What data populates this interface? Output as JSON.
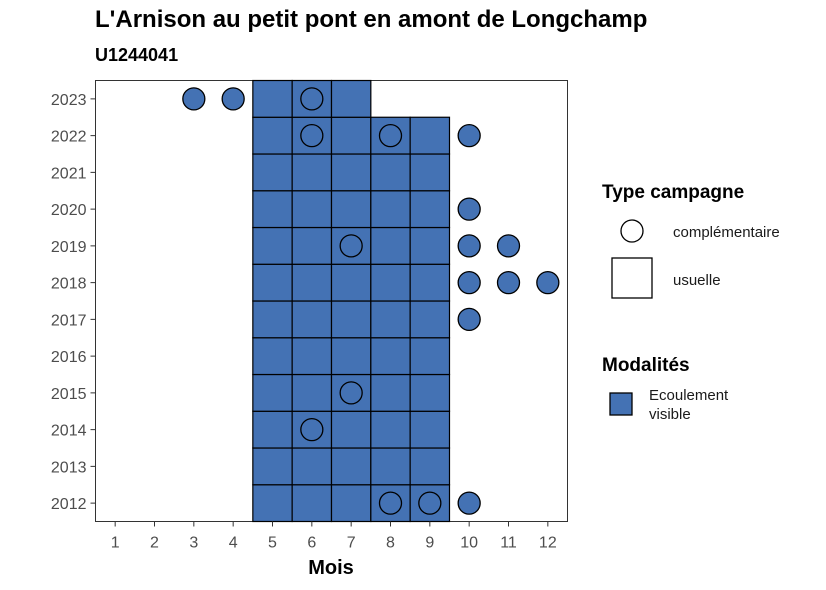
{
  "title": "L'Arnison au petit pont en amont de Longchamp",
  "subtitle": "U1244041",
  "legend": {
    "type_title": "Type campagne",
    "type_items": [
      "complémentaire",
      "usuelle"
    ],
    "modal_title": "Modalités",
    "modal_items": [
      {
        "label": "Ecoulement visible",
        "color": "#4472b4"
      }
    ]
  },
  "chart_data": {
    "type": "heatmap",
    "xlabel": "Mois",
    "ylabel": "",
    "x_ticks": [
      1,
      2,
      3,
      4,
      5,
      6,
      7,
      8,
      9,
      10,
      11,
      12
    ],
    "y_ticks": [
      2012,
      2013,
      2014,
      2015,
      2016,
      2017,
      2018,
      2019,
      2020,
      2021,
      2022,
      2023
    ],
    "xlim": [
      0.5,
      12.5
    ],
    "ylim": [
      2011.5,
      2023.5
    ],
    "grid": false,
    "fill_color": "#4472b4",
    "modalite": "Ecoulement visible",
    "usuelle": [
      {
        "year": 2012,
        "months": [
          5,
          6,
          7,
          8,
          9
        ]
      },
      {
        "year": 2013,
        "months": [
          5,
          6,
          7,
          8,
          9
        ]
      },
      {
        "year": 2014,
        "months": [
          5,
          6,
          7,
          8,
          9
        ]
      },
      {
        "year": 2015,
        "months": [
          5,
          6,
          7,
          8,
          9
        ]
      },
      {
        "year": 2016,
        "months": [
          5,
          6,
          7,
          8,
          9
        ]
      },
      {
        "year": 2017,
        "months": [
          5,
          6,
          7,
          8,
          9
        ]
      },
      {
        "year": 2018,
        "months": [
          5,
          6,
          7,
          8,
          9
        ]
      },
      {
        "year": 2019,
        "months": [
          5,
          6,
          7,
          8,
          9
        ]
      },
      {
        "year": 2020,
        "months": [
          5,
          6,
          7,
          8,
          9
        ]
      },
      {
        "year": 2021,
        "months": [
          5,
          6,
          7,
          8,
          9
        ]
      },
      {
        "year": 2022,
        "months": [
          5,
          6,
          7,
          8,
          9
        ]
      },
      {
        "year": 2023,
        "months": [
          5,
          6,
          7
        ]
      }
    ],
    "complementaire": [
      {
        "year": 2012,
        "months": [
          8,
          9,
          10
        ]
      },
      {
        "year": 2014,
        "months": [
          6
        ]
      },
      {
        "year": 2015,
        "months": [
          7
        ]
      },
      {
        "year": 2017,
        "months": [
          10
        ]
      },
      {
        "year": 2018,
        "months": [
          10,
          11,
          12
        ]
      },
      {
        "year": 2019,
        "months": [
          7,
          10,
          11
        ]
      },
      {
        "year": 2020,
        "months": [
          10
        ]
      },
      {
        "year": 2022,
        "months": [
          6,
          8,
          10
        ]
      },
      {
        "year": 2023,
        "months": [
          3,
          4,
          6
        ]
      }
    ]
  }
}
